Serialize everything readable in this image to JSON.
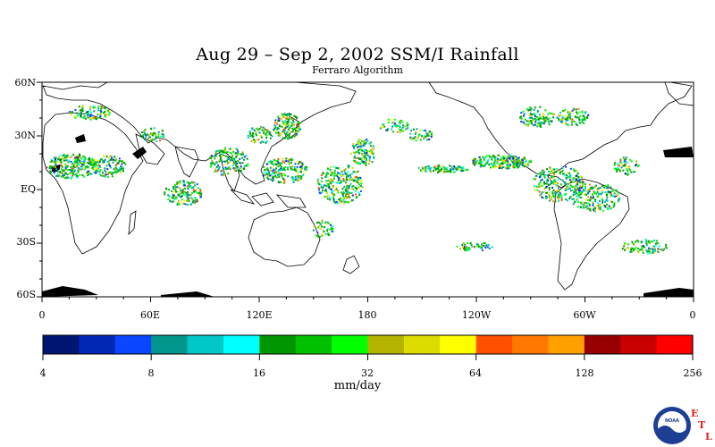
{
  "title": "Aug 29 – Sep 2, 2002 SSM/I Rainfall",
  "subtitle": "Ferraro Algorithm",
  "map": {
    "lat_labels": [
      "60N",
      "30N",
      "EQ",
      "30S",
      "60S"
    ],
    "lon_labels": [
      "0",
      "60E",
      "120E",
      "180",
      "120W",
      "60W",
      "0"
    ],
    "land_color": "#000000",
    "ocean_color": "#ffffff"
  },
  "colorbar": {
    "colors": [
      "#001472",
      "#0028b4",
      "#0a46ff",
      "#00968c",
      "#00c8c8",
      "#00ffff",
      "#009600",
      "#00c000",
      "#00ff00",
      "#b4b400",
      "#dcdc00",
      "#ffff00",
      "#ff5000",
      "#ff7800",
      "#ffa000",
      "#960000",
      "#c80000",
      "#ff0000"
    ],
    "tick_labels": [
      "4",
      "8",
      "16",
      "32",
      "64",
      "128",
      "256"
    ],
    "units": "mm/day"
  },
  "logo": {
    "name": "noaa-logo-icon",
    "text": "NOAA",
    "letters": [
      "E",
      "T",
      "L"
    ]
  }
}
